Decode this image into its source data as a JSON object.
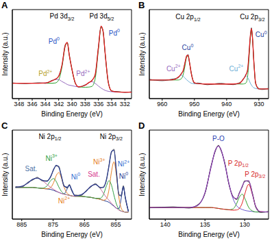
{
  "chart_data": [
    {
      "type": "line",
      "title": "A",
      "x_label": "Binding Energy (eV)",
      "y_label": "Intensity (a.u.)",
      "x": [
        331,
        332,
        333,
        334,
        334.5,
        335,
        335.3,
        335.6,
        336,
        336.5,
        337,
        337.5,
        338,
        339,
        339.5,
        340,
        340.4,
        340.7,
        341,
        341.5,
        342,
        342.5,
        343,
        344,
        345,
        347,
        349
      ],
      "series": [
        {
          "color": "#2ca02c",
          "values": [
            8,
            8,
            8.2,
            9.5,
            19.5,
            57.5,
            82.8,
            88.5,
            60.6,
            24,
            15,
            14.2,
            14,
            14.5,
            19,
            36.5,
            53.5,
            69,
            65,
            39,
            23,
            19.3,
            19,
            19,
            19,
            19,
            19
          ]
        },
        {
          "color": "#9467bd",
          "values": [
            8,
            8,
            8,
            8.5,
            9,
            10.2,
            11.5,
            13,
            15.5,
            18.9,
            21,
            19.4,
            16.5,
            14.6,
            15,
            16,
            16.6,
            17.4,
            18.9,
            21.1,
            23.5,
            23.8,
            22,
            19.3,
            19,
            19,
            19
          ]
        },
        {
          "color": "#555555",
          "values": [
            8.5,
            7.6,
            8.6,
            9.1,
            20.3,
            56.8,
            84.1,
            88.7,
            63.9,
            28.6,
            22.7,
            19.0,
            17.1,
            14.2,
            19.9,
            35.8,
            54.4,
            68.6,
            66.7,
            40.9,
            28.2,
            23.5,
            22.6,
            18.8,
            19.6,
            18.5,
            19.4
          ]
        },
        {
          "color": "#e31a1c",
          "values": [
            8,
            8,
            8.2,
            9.5,
            19.5,
            57.7,
            83.3,
            89.5,
            63.1,
            29.4,
            22,
            19.6,
            16.5,
            14.6,
            19.3,
            36.5,
            53.6,
            69.4,
            65.9,
            41.6,
            27.5,
            24.1,
            22,
            19.3,
            19,
            19,
            19
          ]
        }
      ],
      "xlim": [
        349,
        331
      ],
      "xticks": [
        348,
        346,
        344,
        342,
        340,
        338,
        336,
        334,
        332
      ],
      "ylim": [
        0,
        110
      ],
      "yticks": [],
      "tick_labels": "x",
      "grid": false,
      "annotations": [
        {
          "text": "Pd 3d",
          "sub": "3/2",
          "x": 341.5,
          "y": 101,
          "color": "#000000"
        },
        {
          "text": "Pd 3d",
          "sub": "5/2",
          "x": 335.5,
          "y": 101,
          "color": "#000000"
        },
        {
          "text": "Pd",
          "sup": "0",
          "x": 342.7,
          "y": 70,
          "color": "#1f4fc4"
        },
        {
          "text": "Pd",
          "sup": "0",
          "x": 333.6,
          "y": 80,
          "color": "#1f4fc4"
        },
        {
          "text": "Pd",
          "sup": "2+",
          "x": 344,
          "y": 30,
          "color": "#b5a02a"
        },
        {
          "text": "Pd",
          "sup": "2+",
          "x": 338.3,
          "y": 30,
          "color": "#9467bd"
        }
      ]
    },
    {
      "type": "line",
      "title": "B",
      "x_label": "Binding Energy (eV)",
      "y_label": "Intensity (a.u.)",
      "x": [
        927,
        929,
        930,
        931,
        931.5,
        932,
        932.3,
        932.7,
        933,
        933.5,
        934,
        935,
        936,
        938,
        942,
        946,
        949,
        950,
        951,
        951.5,
        952,
        952.4,
        953,
        953.5,
        954,
        955,
        957,
        960,
        964
      ],
      "series": [
        {
          "color": "#2ca02c",
          "values": [
            12,
            12,
            12,
            19.2,
            41.7,
            75.6,
            85,
            72,
            52.7,
            27,
            19.3,
            18,
            18,
            18,
            18,
            18,
            18.5,
            19.5,
            31.5,
            44,
            52.7,
            51.3,
            39,
            29.5,
            24.9,
            23,
            23,
            23,
            23
          ]
        },
        {
          "color": "#6baed6",
          "values": [
            12,
            12,
            12,
            12.5,
            13.2,
            14.9,
            16.7,
            19.5,
            22.4,
            26.1,
            28,
            23.4,
            18.9,
            18,
            18,
            18,
            18.5,
            18.5,
            19,
            20.3,
            21.8,
            23.2,
            25.6,
            27.8,
            29,
            26.6,
            23.1,
            23,
            23
          ]
        },
        {
          "color": "#555555",
          "values": [
            12.8,
            11.2,
            12.6,
            18.5,
            42.8,
            75.4,
            87.5,
            74.6,
            58.9,
            34.7,
            30.2,
            22.6,
            19.8,
            17.2,
            18.9,
            17.1,
            19.3,
            18.7,
            32.4,
            43.5,
            54.6,
            52.1,
            43.5,
            33.9,
            31.8,
            25.7,
            24.0,
            22.1,
            23.9
          ]
        },
        {
          "color": "#e31a1c",
          "values": [
            12,
            12,
            12,
            19.2,
            41.9,
            76.5,
            86.7,
            75.5,
            58.1,
            35.6,
            29.3,
            23.4,
            18.9,
            18,
            18,
            18,
            18.5,
            19.5,
            31.5,
            44.3,
            53.5,
            53,
            42.6,
            34.8,
            30.9,
            26.6,
            23.1,
            23,
            23
          ]
        }
      ],
      "xlim": [
        964,
        927
      ],
      "xticks": [
        960,
        950,
        940,
        930
      ],
      "ylim": [
        0,
        110
      ],
      "yticks": [],
      "tick_labels": "x",
      "grid": false,
      "annotations": [
        {
          "text": "Cu 2p",
          "sub": "1/2",
          "x": 952,
          "y": 100,
          "color": "#000000"
        },
        {
          "text": "Cu 2p",
          "sub": "3/2",
          "x": 932,
          "y": 100,
          "color": "#000000"
        },
        {
          "text": "Cu",
          "sup": "0",
          "x": 952.1,
          "y": 62,
          "color": "#1f3f9f"
        },
        {
          "text": "Cu",
          "sup": "0",
          "x": 929.3,
          "y": 78,
          "color": "#1f3f9f"
        },
        {
          "text": "Cu",
          "sup": "2+",
          "x": 956.5,
          "y": 36,
          "color": "#9467bd"
        },
        {
          "text": "Cu",
          "sup": "2+",
          "x": 937,
          "y": 36,
          "color": "#6baed6"
        }
      ]
    },
    {
      "type": "line",
      "title": "C",
      "x_label": "Binding Energy (eV)",
      "y_label": "Intensity (a.u.)",
      "x": [
        851,
        852,
        852.6,
        853.3,
        854,
        854.8,
        855.6,
        856.4,
        857.2,
        858,
        859,
        860,
        861.5,
        863,
        864.5,
        866,
        868,
        869.2,
        869.8,
        870.5,
        871.5,
        872.4,
        873.2,
        874,
        874.8,
        875.8,
        877,
        878.5,
        880,
        881.5,
        883,
        885,
        887
      ],
      "series": [
        {
          "color": "#1f3a93",
          "values": [
            22.7,
            37.2,
            47.5,
            35.7,
            25.6,
            26,
            28,
            30,
            32,
            33,
            34,
            35,
            36,
            37,
            37.5,
            38,
            38.4,
            45.4,
            49,
            45.6,
            40.5,
            41,
            42,
            43,
            44,
            45,
            45.5,
            46,
            46.5,
            47,
            47,
            47,
            47
          ]
        },
        {
          "color": "#e67e22",
          "values": [
            22,
            22,
            23,
            26.2,
            36.5,
            58.7,
            73,
            62.7,
            44.5,
            35.5,
            34.1,
            35,
            36,
            37,
            37.5,
            38,
            38,
            38.6,
            39.4,
            41.1,
            47.3,
            57,
            62,
            59,
            52.2,
            46.9,
            45.6,
            46,
            46.5,
            47,
            47,
            47,
            47
          ]
        },
        {
          "color": "#2e9e44",
          "values": [
            22,
            22,
            22.5,
            23.2,
            25,
            30.1,
            39.2,
            49.4,
            53.8,
            48.6,
            39.5,
            36,
            36,
            37,
            37.5,
            38,
            38,
            38.5,
            39,
            39.5,
            40.5,
            43.2,
            47.6,
            53,
            56,
            53.9,
            48.4,
            46.2,
            46.5,
            47,
            47,
            47,
            47
          ]
        },
        {
          "color": "#c76a9e",
          "values": [
            22,
            22,
            22.5,
            23,
            24,
            26,
            28.4,
            31,
            34.1,
            36.9,
            41.3,
            46.1,
            50,
            48.1,
            43,
            39.7,
            38.2,
            38.5,
            39,
            39.5,
            40,
            41,
            42,
            43.4,
            45,
            47.2,
            50.1,
            54.2,
            56.5,
            55.2,
            51.6,
            48.1,
            47.1
          ]
        },
        {
          "color": "#555555",
          "values": [
            23.4,
            36.5,
            48.9,
            38.2,
            40.1,
            61.9,
            85.7,
            82.2,
            69.3,
            54.1,
            47.8,
            46.3,
            50.9,
            47.2,
            43.8,
            38.9,
            39.4,
            44.6,
            50.2,
            46.3,
            49.1,
            58.4,
            68.5,
            68.6,
            66.0,
            57.2,
            53.9,
            53.6,
            57.3,
            54.4,
            52.4,
            47.3,
            47.9
          ]
        },
        {
          "color": "#2c3e8f",
          "values": [
            22.7,
            37.2,
            48,
            39.1,
            39.1,
            62.8,
            84.6,
            83.1,
            68.4,
            55,
            46.9,
            47.1,
            50,
            48.1,
            43,
            39.7,
            38.6,
            45.5,
            49.4,
            47.2,
            48.3,
            59.2,
            67.6,
            69.4,
            65.2,
            58,
            53.1,
            54.4,
            56.5,
            55.2,
            51.6,
            48.1,
            47.1
          ]
        }
      ],
      "xlim": [
        888,
        850
      ],
      "xticks": [
        885,
        875,
        865,
        855
      ],
      "ylim": [
        15,
        105
      ],
      "yticks": [],
      "tick_labels": "x",
      "grid": false,
      "annotations": [
        {
          "text": "Ni 2p",
          "sub": "1/2",
          "x": 876,
          "y": 98,
          "color": "#000000"
        },
        {
          "text": "Ni 2p",
          "sub": "3/2",
          "x": 856.5,
          "y": 98,
          "color": "#000000"
        },
        {
          "text": "Sat.",
          "x": 882,
          "y": 65,
          "color": "#4a6fa5"
        },
        {
          "text": "Ni",
          "sup": "3+",
          "x": 875.5,
          "y": 76,
          "color": "#2e9e44"
        },
        {
          "text": "Ni",
          "sup": "0",
          "x": 867.8,
          "y": 57,
          "color": "#2e6bd1"
        },
        {
          "text": "Ni",
          "sup": "2+",
          "x": 871.5,
          "y": 33,
          "color": "#e67e22"
        },
        {
          "text": "Sat.",
          "x": 862,
          "y": 60,
          "color": "#d6338a"
        },
        {
          "text": "Ni",
          "sup": "3+",
          "x": 860.3,
          "y": 72,
          "color": "#e67e22"
        },
        {
          "text": "Ni",
          "sup": "2+",
          "x": 852.5,
          "y": 70,
          "color": "#2e6bd1"
        },
        {
          "text": "Ni",
          "sup": "0",
          "x": 852.5,
          "y": 58,
          "color": "#1f3a93"
        }
      ]
    },
    {
      "type": "line",
      "title": "D",
      "x_label": "Binding Energy (eV)",
      "y_label": "Intensity (a.u.)",
      "x": [
        127,
        128,
        128.6,
        129,
        129.5,
        130,
        130.3,
        130.7,
        131,
        131.5,
        132,
        132.5,
        133,
        133.3,
        133.7,
        134.2,
        135,
        136,
        137,
        139,
        142
      ],
      "series": [
        {
          "color": "#6a5acd",
          "values": [
            8,
            8,
            8,
            8.5,
            9,
            9.8,
            10.8,
            12.4,
            14.9,
            23.9,
            40.5,
            62,
            78.4,
            82,
            77.1,
            59.8,
            29.5,
            14.9,
            13,
            13,
            13
          ]
        },
        {
          "color": "#2ca02c",
          "values": [
            8,
            8,
            8,
            9,
            13.2,
            23.6,
            28,
            24.1,
            17.7,
            11.3,
            10.5,
            11,
            11.5,
            12,
            12.5,
            13,
            13,
            13,
            13,
            13,
            13
          ]
        },
        {
          "color": "#e31a1c",
          "values": [
            8,
            8.3,
            14,
            26.7,
            39,
            27.7,
            18.3,
            11.7,
            10.3,
            10,
            10.5,
            11,
            11.5,
            12,
            12.5,
            13,
            13,
            13,
            13,
            13,
            13
          ]
        },
        {
          "color": "#222222",
          "values": [
            8.6,
            7.5,
            13.2,
            28.3,
            42.1,
            43.0,
            36.2,
            29.1,
            22.0,
            26.1,
            39.6,
            63.1,
            77.5,
            82.9,
            76.2,
            60.8,
            28.7,
            15.6,
            12.4,
            13.7,
            12.6
          ]
        },
        {
          "color": "#8e44ad",
          "values": [
            8,
            8.3,
            14,
            27.2,
            43.2,
            42.1,
            37.1,
            28.2,
            22.9,
            25.2,
            40.5,
            62,
            78.4,
            82,
            77.1,
            59.8,
            29.5,
            14.9,
            13,
            13,
            13
          ]
        }
      ],
      "xlim": [
        142,
        127
      ],
      "xticks": [
        140,
        135,
        130
      ],
      "ylim": [
        0,
        100
      ],
      "yticks": [],
      "tick_labels": "x",
      "grid": false,
      "annotations": [
        {
          "text": "P-O",
          "x": 133.3,
          "y": 90,
          "color": "#2a3fb0"
        },
        {
          "text": "P 2p",
          "sub": "1/2",
          "x": 130.8,
          "y": 62,
          "color": "#d62728"
        },
        {
          "text": "P 2p",
          "sub": "3/2",
          "x": 128.7,
          "y": 50,
          "color": "#d62728"
        }
      ]
    }
  ]
}
